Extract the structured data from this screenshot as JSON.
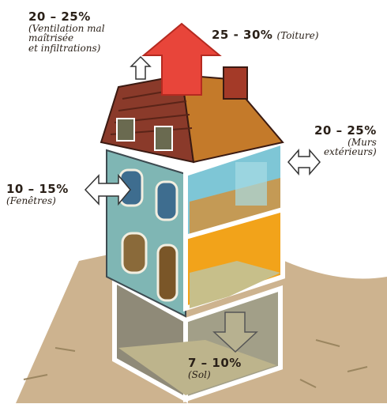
{
  "labels": {
    "ventilation": {
      "pct": "20 – 25%",
      "lines": [
        "(Ventilation mal",
        "maîtrisée",
        "et infiltrations)"
      ]
    },
    "roof": {
      "pct": "25 - 30%",
      "text": "(Toiture)"
    },
    "walls": {
      "pct": "20 – 25%",
      "lines": [
        "(Murs",
        "extérieurs)"
      ]
    },
    "windows": {
      "pct": "10 – 15%",
      "text": "(Fenêtres)"
    },
    "floor": {
      "pct": "7 – 10%",
      "text": "(Sol)"
    }
  },
  "colors": {
    "roof_arrow": "#e8453a",
    "roof_tiles": "#8a3a2a",
    "facade": "#7fb6b4",
    "top_room": "#7ec6d6",
    "mid_room": "#f2a31a",
    "basement": "#b9b089",
    "ground": "#c8b28c"
  }
}
